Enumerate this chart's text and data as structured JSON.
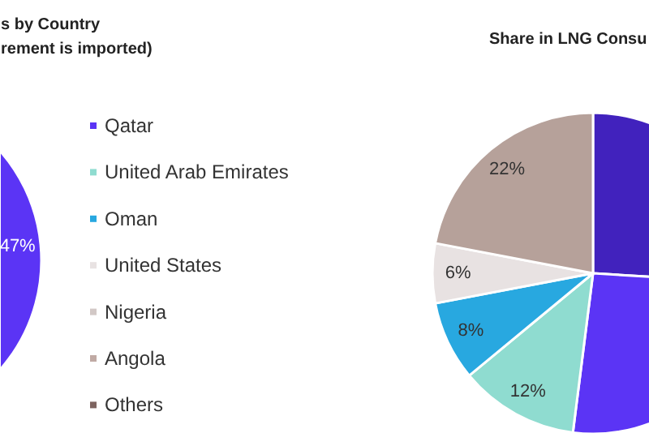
{
  "chart_data": [
    {
      "type": "pie",
      "title": "s by Country",
      "subtitle": "rement is imported)",
      "categories": [
        "Qatar",
        "United Arab Emirates",
        "Oman",
        "United States",
        "Nigeria",
        "Angola",
        "Others"
      ],
      "values": [
        47,
        null,
        null,
        null,
        null,
        null,
        null
      ],
      "colors": [
        "#5b34f5",
        "#8fdcd0",
        "#28a8e0",
        "#e8e2e2",
        "#d2c8c6",
        "#c0aaa4",
        "#7e6460"
      ],
      "value_labels": [
        "47%",
        null,
        null,
        null,
        null,
        null,
        null
      ],
      "legend": "right"
    },
    {
      "type": "pie",
      "title": "Share in LNG Consu",
      "categories": [
        null,
        null,
        null,
        null,
        null,
        null
      ],
      "values": [
        26,
        26,
        12,
        8,
        6,
        22
      ],
      "colors": [
        "#4122bd",
        "#5b34f5",
        "#8fdcd0",
        "#28a8e0",
        "#e8e2e2",
        "#b6a19a"
      ],
      "value_labels": [
        null,
        null,
        "12%",
        "8%",
        "6%",
        "22%"
      ]
    }
  ]
}
